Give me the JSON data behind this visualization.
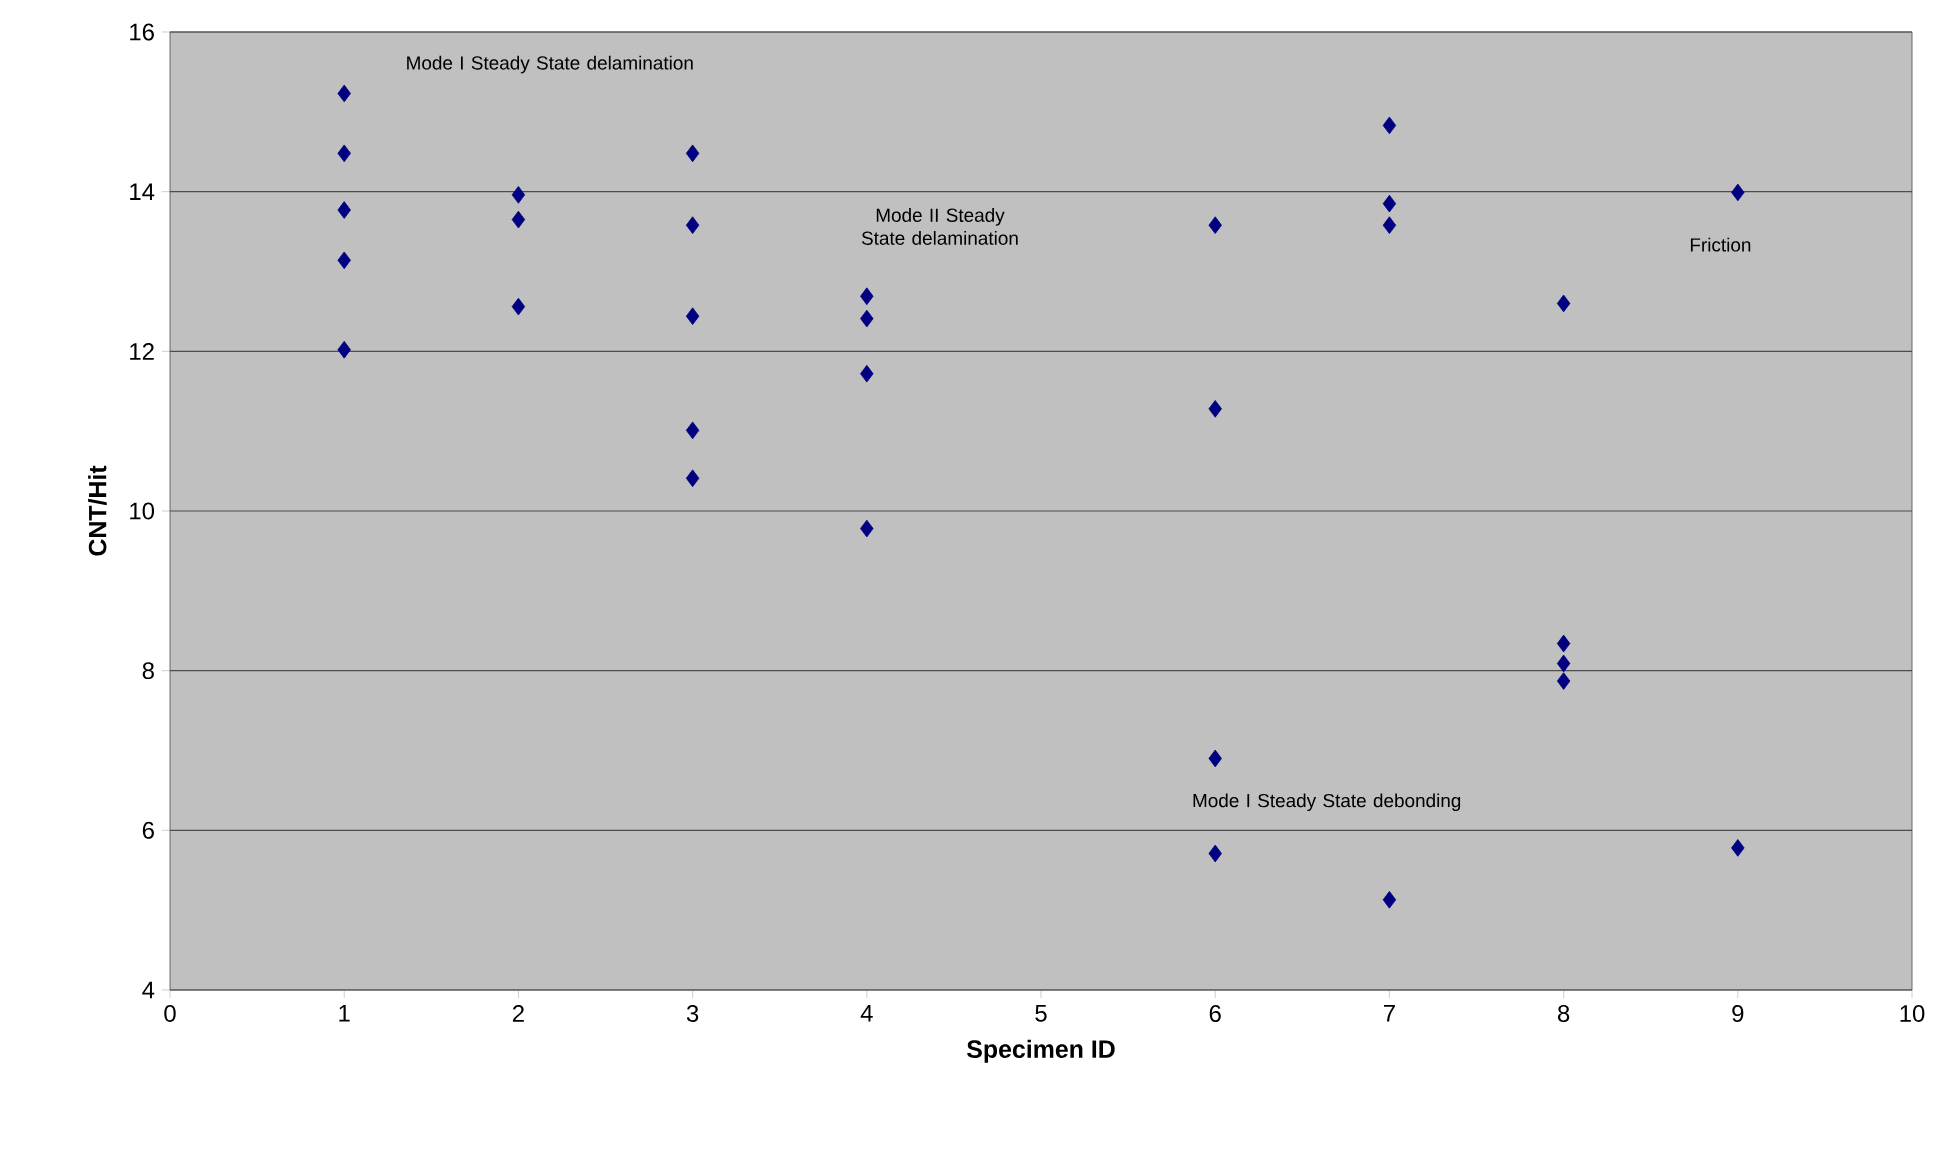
{
  "chart_data": {
    "type": "scatter",
    "xlabel": "Specimen ID",
    "ylabel": "CNT/Hit",
    "xlim": [
      0,
      10
    ],
    "xticks": [
      0,
      1,
      2,
      3,
      4,
      5,
      6,
      7,
      8,
      9,
      10
    ],
    "ylim": [
      4,
      16
    ],
    "yticks": [
      4,
      6,
      8,
      10,
      12,
      14,
      16
    ],
    "grid": "y",
    "marker": "diamond",
    "series": [
      {
        "color": "#000080",
        "x": [
          1,
          1,
          1,
          1,
          1,
          2,
          2,
          2,
          3,
          3,
          3,
          3,
          3,
          4,
          4,
          4,
          4,
          6,
          6,
          6,
          6,
          7,
          7,
          7,
          7,
          8,
          8,
          8,
          8,
          9,
          9
        ],
        "values": [
          15.23,
          14.48,
          13.77,
          13.14,
          12.02,
          13.96,
          13.65,
          12.56,
          14.48,
          13.58,
          12.44,
          11.01,
          10.41,
          12.69,
          12.41,
          11.72,
          9.78,
          13.58,
          11.28,
          6.9,
          5.71,
          14.83,
          13.85,
          13.58,
          5.13,
          12.6,
          8.34,
          8.09,
          7.87,
          13.99,
          5.78
        ]
      }
    ],
    "annotations": [
      "Mode I Steady State delamination",
      "Mode II Steady State delamination",
      "Mode I Steady State debonding",
      "Friction"
    ]
  }
}
